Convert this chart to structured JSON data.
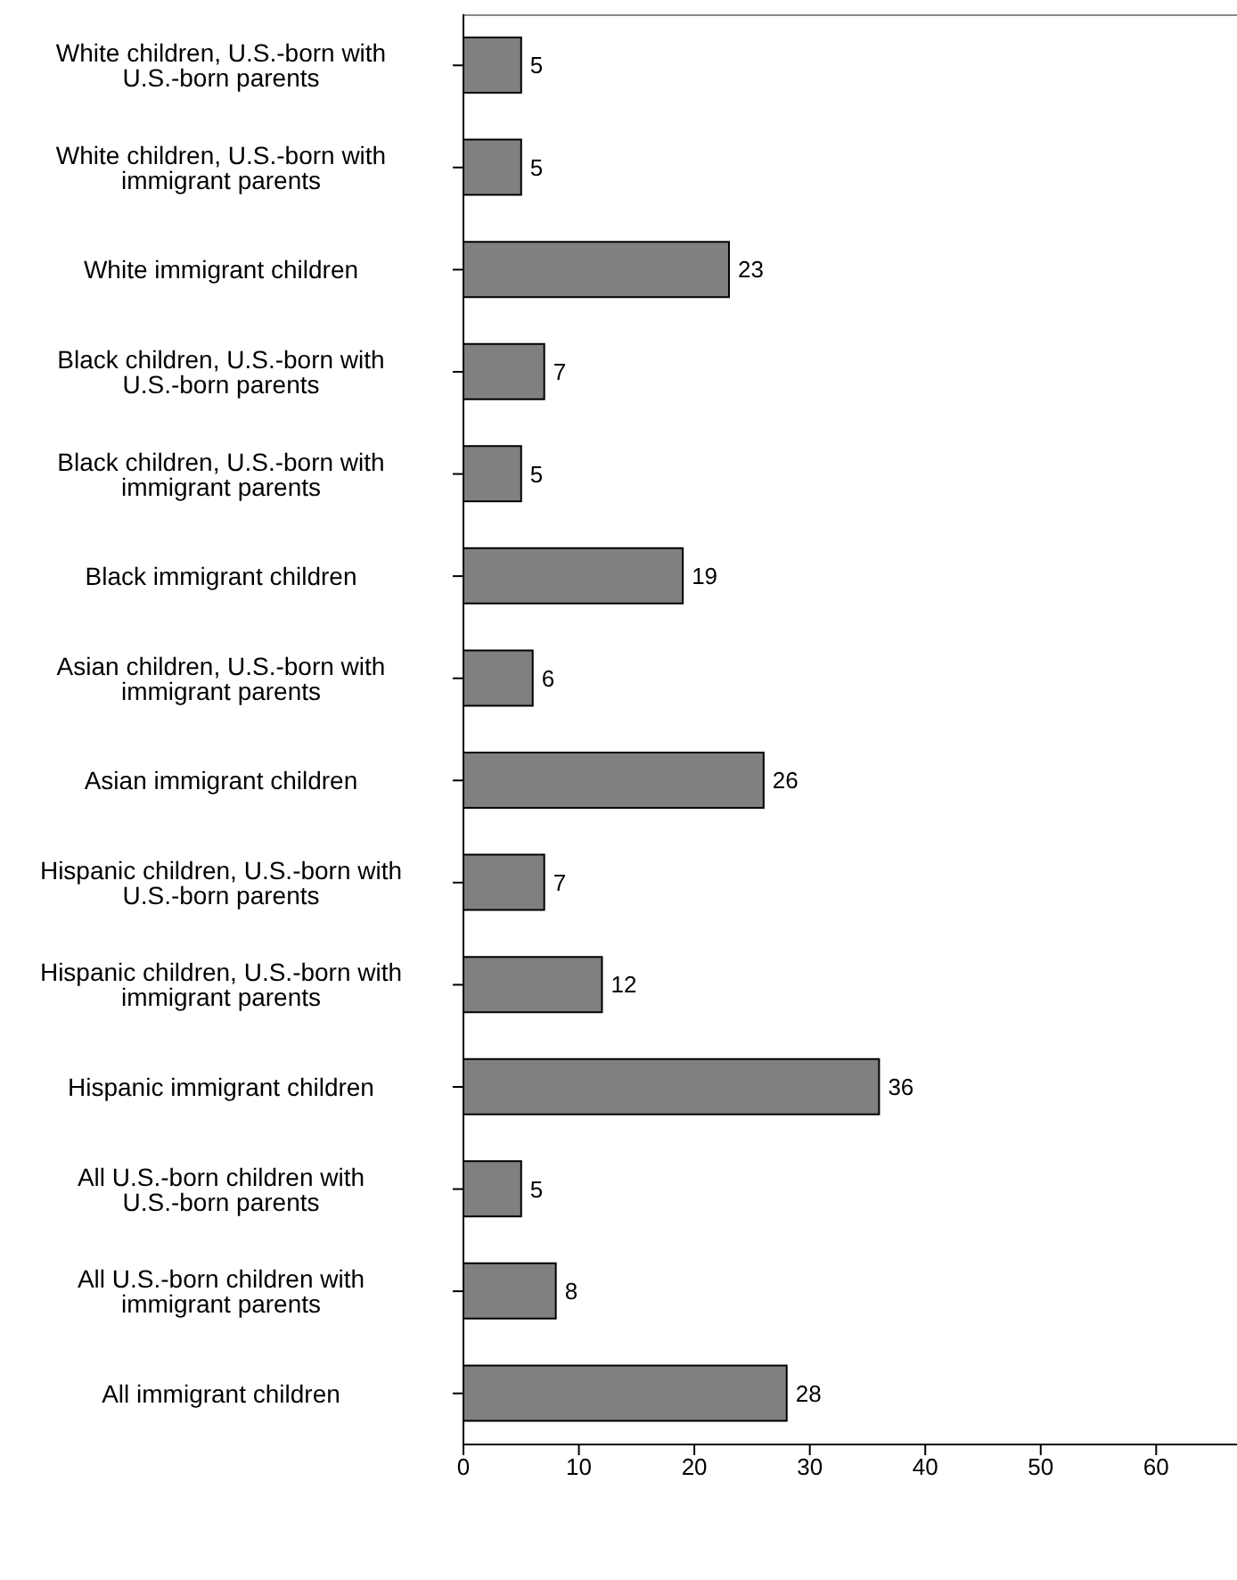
{
  "chart_data": {
    "type": "bar",
    "orientation": "horizontal",
    "categories": [
      "White children, U.S.-born with U.S.-born parents",
      "White children, U.S.-born with immigrant parents",
      "White immigrant children",
      "Black children, U.S.-born with U.S.-born parents",
      "Black children, U.S.-born with immigrant parents",
      "Black immigrant children",
      "Asian children, U.S.-born with immigrant parents",
      "Asian immigrant children",
      "Hispanic children, U.S.-born with U.S.-born parents",
      "Hispanic children, U.S.-born with immigrant parents",
      "Hispanic immigrant children",
      "All U.S.-born children with U.S.-born parents",
      "All U.S.-born children with immigrant parents",
      "All immigrant children"
    ],
    "values": [
      5,
      5,
      23,
      7,
      5,
      19,
      6,
      26,
      7,
      12,
      36,
      5,
      8,
      28
    ],
    "color": "#808080",
    "data_labels": true,
    "xlim": [
      0,
      67
    ],
    "xticks": [
      0,
      10,
      20,
      30,
      40,
      50,
      60
    ]
  }
}
